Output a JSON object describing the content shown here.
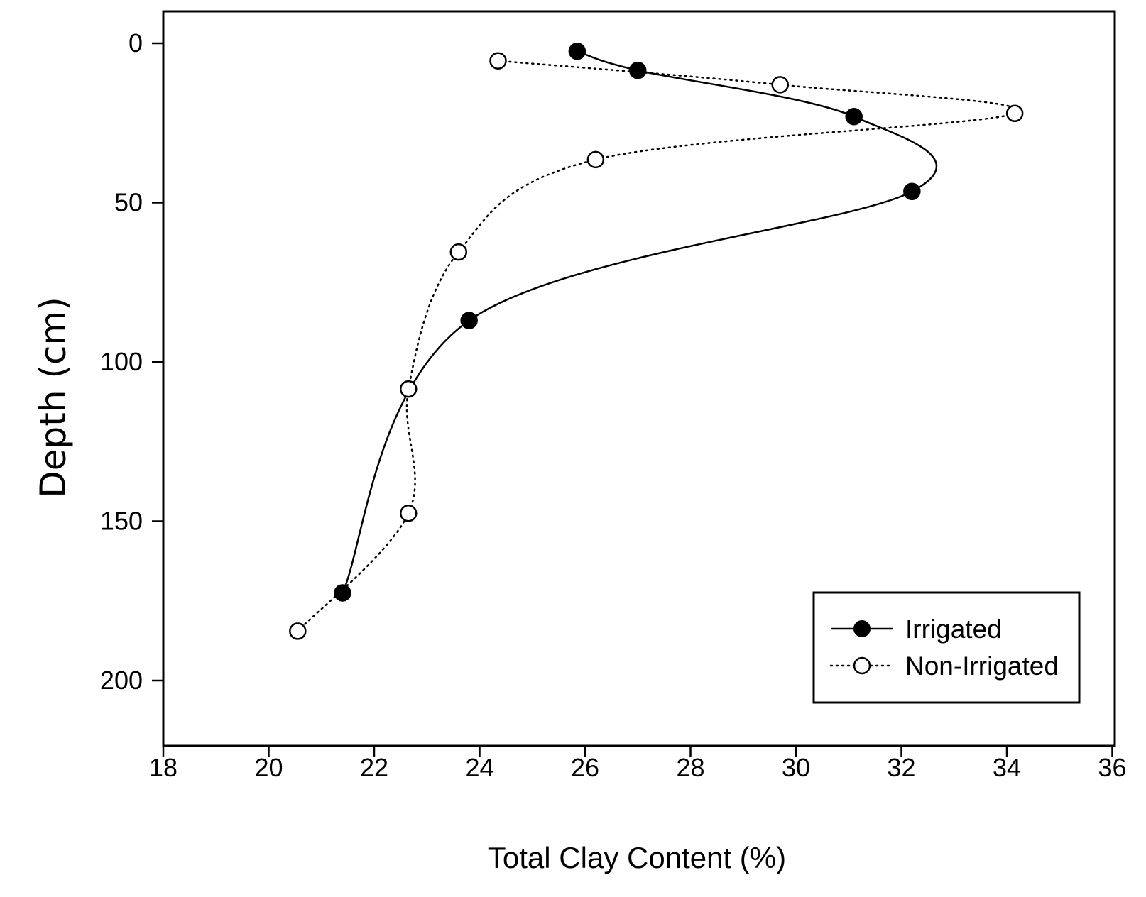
{
  "chart_data": {
    "type": "line",
    "title": "",
    "xlabel": "Total Clay Content (%)",
    "ylabel": "Depth (cm)",
    "xlim": [
      18,
      36
    ],
    "ylim": [
      0,
      220
    ],
    "y_inverted": true,
    "x_ticks": [
      18,
      20,
      22,
      24,
      26,
      28,
      30,
      32,
      34,
      36
    ],
    "x_tick_labels": [
      "18",
      "20",
      "22",
      "24",
      "26",
      "28",
      "30",
      "32",
      "34",
      "36"
    ],
    "y_ticks": [
      0,
      50,
      100,
      150,
      200
    ],
    "y_tick_labels": [
      "0",
      "50",
      "100",
      "150",
      "200"
    ],
    "grid": false,
    "legend_position": "bottom-right",
    "series": [
      {
        "name": "Irrigated",
        "marker": "filled-circle",
        "line_style": "solid",
        "color": "#000000",
        "points": [
          {
            "x": 25.85,
            "y": 2.5
          },
          {
            "x": 27.0,
            "y": 8.5
          },
          {
            "x": 31.1,
            "y": 23.0
          },
          {
            "x": 32.2,
            "y": 46.5
          },
          {
            "x": 23.8,
            "y": 87.0
          },
          {
            "x": 21.4,
            "y": 172.5
          }
        ]
      },
      {
        "name": "Non-Irrigated",
        "marker": "open-circle",
        "line_style": "dotted",
        "color": "#000000",
        "points": [
          {
            "x": 24.35,
            "y": 5.5
          },
          {
            "x": 29.7,
            "y": 13.0
          },
          {
            "x": 34.15,
            "y": 22.0
          },
          {
            "x": 26.2,
            "y": 36.5
          },
          {
            "x": 23.6,
            "y": 65.5
          },
          {
            "x": 22.65,
            "y": 108.5
          },
          {
            "x": 22.65,
            "y": 147.5
          },
          {
            "x": 20.55,
            "y": 184.5
          }
        ]
      }
    ]
  }
}
